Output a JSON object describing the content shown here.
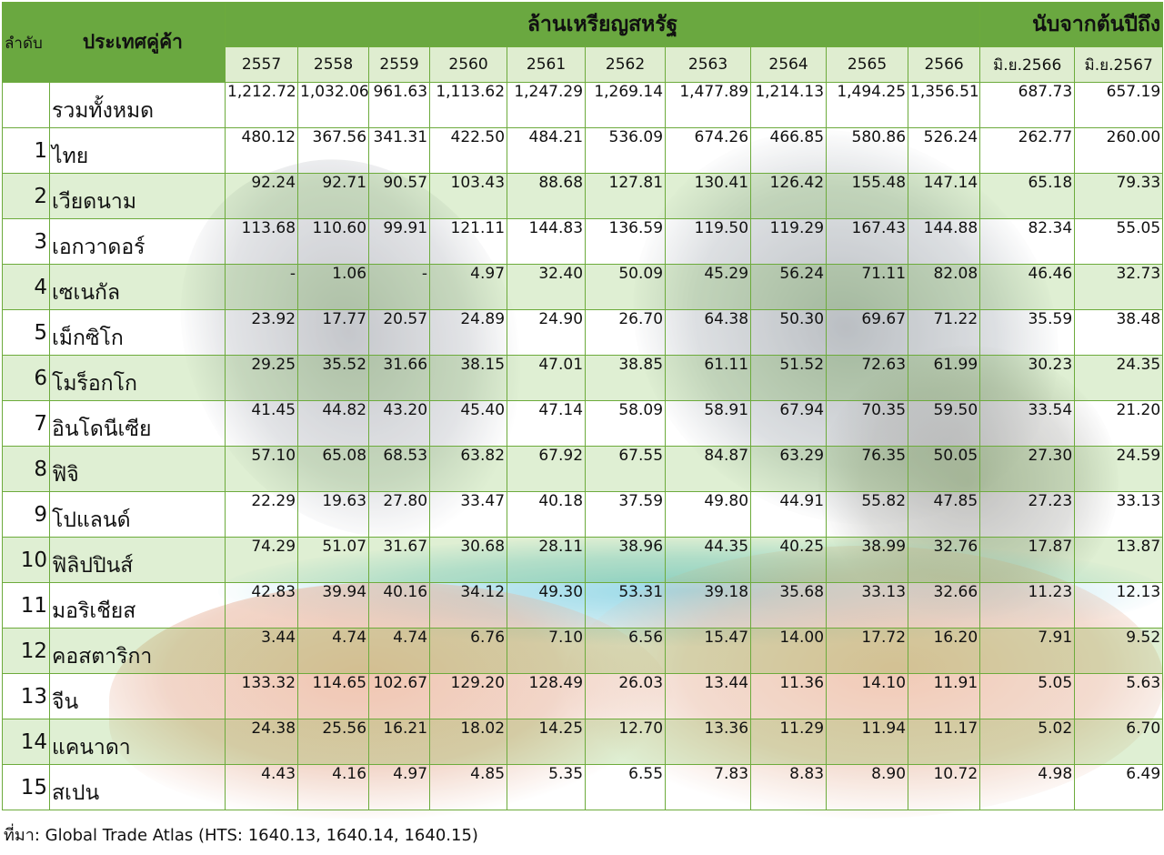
{
  "header": {
    "group_main": "ล้านเหรียญสหรัฐ",
    "group_ytd": "นับจากต้นปีถึง",
    "col_rank": "ลำดับ",
    "col_country": "ประเทศคู่ค้า",
    "years": [
      "2557",
      "2558",
      "2559",
      "2560",
      "2561",
      "2562",
      "2563",
      "2564",
      "2565",
      "2566"
    ],
    "ytd_cols": [
      "มิ.ย.2566",
      "มิ.ย.2567"
    ]
  },
  "rows": [
    {
      "rank": "",
      "country": "รวมทั้งหมด",
      "values": [
        "1,212.72",
        "1,032.06",
        "961.63",
        "1,113.62",
        "1,247.29",
        "1,269.14",
        "1,477.89",
        "1,214.13",
        "1,494.25",
        "1,356.51",
        "687.73",
        "657.19"
      ]
    },
    {
      "rank": "1",
      "country": "ไทย",
      "values": [
        "480.12",
        "367.56",
        "341.31",
        "422.50",
        "484.21",
        "536.09",
        "674.26",
        "466.85",
        "580.86",
        "526.24",
        "262.77",
        "260.00"
      ]
    },
    {
      "rank": "2",
      "country": "เวียดนาม",
      "values": [
        "92.24",
        "92.71",
        "90.57",
        "103.43",
        "88.68",
        "127.81",
        "130.41",
        "126.42",
        "155.48",
        "147.14",
        "65.18",
        "79.33"
      ]
    },
    {
      "rank": "3",
      "country": "เอกวาดอร์",
      "values": [
        "113.68",
        "110.60",
        "99.91",
        "121.11",
        "144.83",
        "136.59",
        "119.50",
        "119.29",
        "167.43",
        "144.88",
        "82.34",
        "55.05"
      ]
    },
    {
      "rank": "4",
      "country": "เซเนกัล",
      "values": [
        "-",
        "1.06",
        "-",
        "4.97",
        "32.40",
        "50.09",
        "45.29",
        "56.24",
        "71.11",
        "82.08",
        "46.46",
        "32.73"
      ]
    },
    {
      "rank": "5",
      "country": "เม็กซิโก",
      "values": [
        "23.92",
        "17.77",
        "20.57",
        "24.89",
        "24.90",
        "26.70",
        "64.38",
        "50.30",
        "69.67",
        "71.22",
        "35.59",
        "38.48"
      ]
    },
    {
      "rank": "6",
      "country": "โมร็อกโก",
      "values": [
        "29.25",
        "35.52",
        "31.66",
        "38.15",
        "47.01",
        "38.85",
        "61.11",
        "51.52",
        "72.63",
        "61.99",
        "30.23",
        "24.35"
      ]
    },
    {
      "rank": "7",
      "country": "อินโดนีเซีย",
      "values": [
        "41.45",
        "44.82",
        "43.20",
        "45.40",
        "47.14",
        "58.09",
        "58.91",
        "67.94",
        "70.35",
        "59.50",
        "33.54",
        "21.20"
      ]
    },
    {
      "rank": "8",
      "country": "ฟิจิ",
      "values": [
        "57.10",
        "65.08",
        "68.53",
        "63.82",
        "67.92",
        "67.55",
        "84.87",
        "63.29",
        "76.35",
        "50.05",
        "27.30",
        "24.59"
      ]
    },
    {
      "rank": "9",
      "country": "โปแลนด์",
      "values": [
        "22.29",
        "19.63",
        "27.80",
        "33.47",
        "40.18",
        "37.59",
        "49.80",
        "44.91",
        "55.82",
        "47.85",
        "27.23",
        "33.13"
      ]
    },
    {
      "rank": "10",
      "country": "ฟิลิปปินส์",
      "values": [
        "74.29",
        "51.07",
        "31.67",
        "30.68",
        "28.11",
        "38.96",
        "44.35",
        "40.25",
        "38.99",
        "32.76",
        "17.87",
        "13.87"
      ]
    },
    {
      "rank": "11",
      "country": "มอริเชียส",
      "values": [
        "42.83",
        "39.94",
        "40.16",
        "34.12",
        "49.30",
        "53.31",
        "39.18",
        "35.68",
        "33.13",
        "32.66",
        "11.23",
        "12.13"
      ]
    },
    {
      "rank": "12",
      "country": "คอสตาริกา",
      "values": [
        "3.44",
        "4.74",
        "4.74",
        "6.76",
        "7.10",
        "6.56",
        "15.47",
        "14.00",
        "17.72",
        "16.20",
        "7.91",
        "9.52"
      ]
    },
    {
      "rank": "13",
      "country": "จีน",
      "values": [
        "133.32",
        "114.65",
        "102.67",
        "129.20",
        "128.49",
        "26.03",
        "13.44",
        "11.36",
        "14.10",
        "11.91",
        "5.05",
        "5.63"
      ]
    },
    {
      "rank": "14",
      "country": "แคนาดา",
      "values": [
        "24.38",
        "25.56",
        "16.21",
        "18.02",
        "14.25",
        "12.70",
        "13.36",
        "11.29",
        "11.94",
        "11.17",
        "5.02",
        "6.70"
      ]
    },
    {
      "rank": "15",
      "country": "สเปน",
      "values": [
        "4.43",
        "4.16",
        "4.97",
        "4.85",
        "5.35",
        "6.55",
        "7.83",
        "8.83",
        "8.90",
        "10.72",
        "4.98",
        "6.49"
      ]
    }
  ],
  "source": "ที่มา: Global Trade Atlas (HTS: 1640.13, 1640.14, 1640.15)",
  "colors": {
    "header_green": "#6aa840",
    "grid": "#6dab3c",
    "row_tint": "#9bcd76"
  }
}
